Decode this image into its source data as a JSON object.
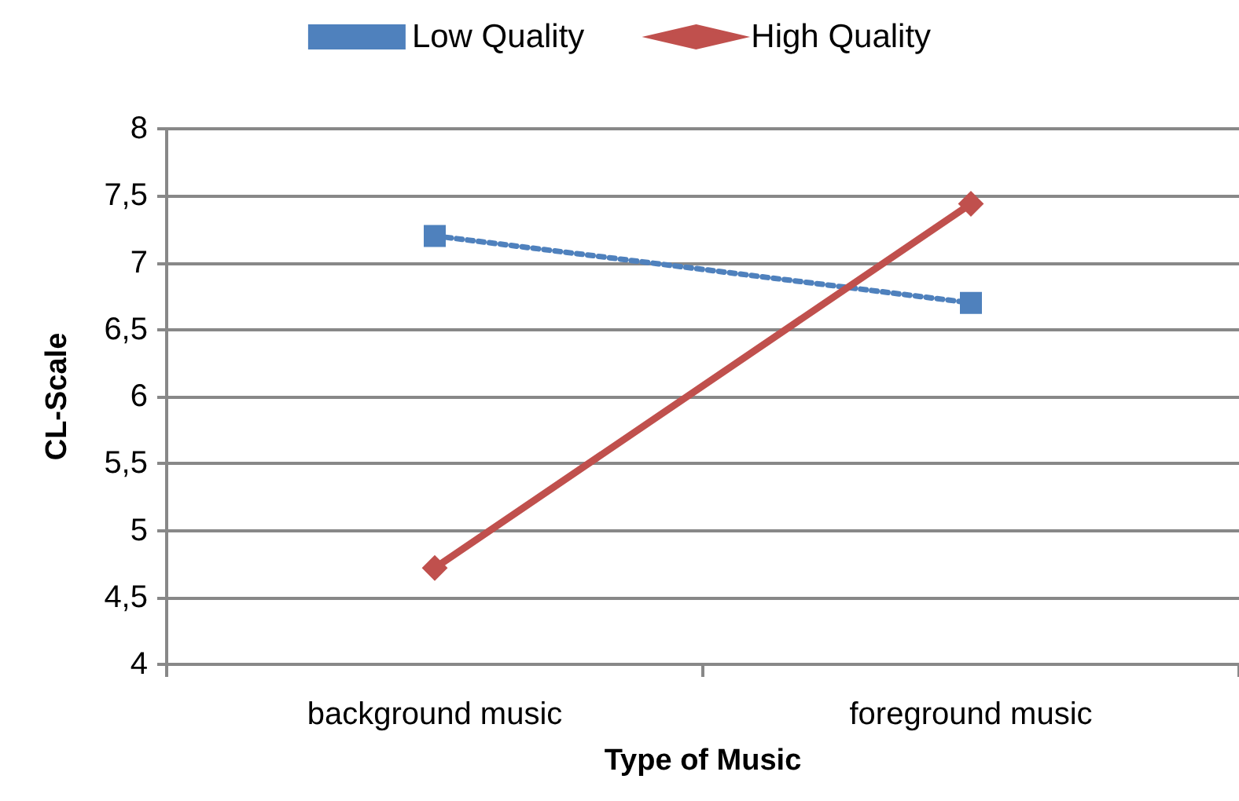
{
  "chart_data": {
    "type": "line",
    "xlabel": "Type of Music",
    "ylabel": "CL-Scale",
    "categories": [
      "background music",
      "foreground music"
    ],
    "series": [
      {
        "name": "Low Quality",
        "color": "#4f81bd",
        "values": [
          7.2,
          6.7
        ],
        "marker": "square",
        "line_style": "dotted"
      },
      {
        "name": "High Quality",
        "color": "#c0504d",
        "values": [
          4.72,
          7.44
        ],
        "marker": "diamond",
        "line_style": "solid"
      }
    ],
    "ylim": [
      4,
      8
    ],
    "yticks": [
      4,
      {
        "value": 4.5,
        "label": "4,5"
      },
      5,
      {
        "value": 5.5,
        "label": "5,5"
      },
      6,
      {
        "value": 6.5,
        "label": "6,5"
      },
      7,
      {
        "value": 7.5,
        "label": "7,5"
      },
      8
    ],
    "grid": "y",
    "legend": "top"
  }
}
